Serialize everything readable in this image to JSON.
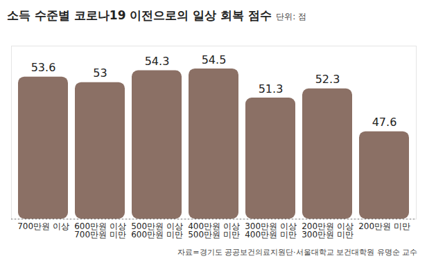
{
  "chart_data": {
    "type": "bar",
    "title": "소득 수준별 코로나19 이전으로의 일상 회복 점수",
    "subtitle": "단위: 점",
    "caption": "자료=경기도 공공보건의료지원단·서울대학교 보건대학원 유명순 교수",
    "categories": [
      "700만원 이상",
      "600만원 이상\n700만원 미만",
      "500만원 이상\n600만원 미만",
      "400만원 이상\n500만원 미만",
      "300만원 이상\n400만원 미만",
      "200만원 이상\n300만원 미만",
      "200만원 미만"
    ],
    "values": [
      53.6,
      53.0,
      54.3,
      54.5,
      51.3,
      52.3,
      47.6
    ],
    "color": "#8b7065",
    "ylim": [
      38,
      57
    ],
    "data_labels": true,
    "tick_labels": "x",
    "grid": false
  }
}
